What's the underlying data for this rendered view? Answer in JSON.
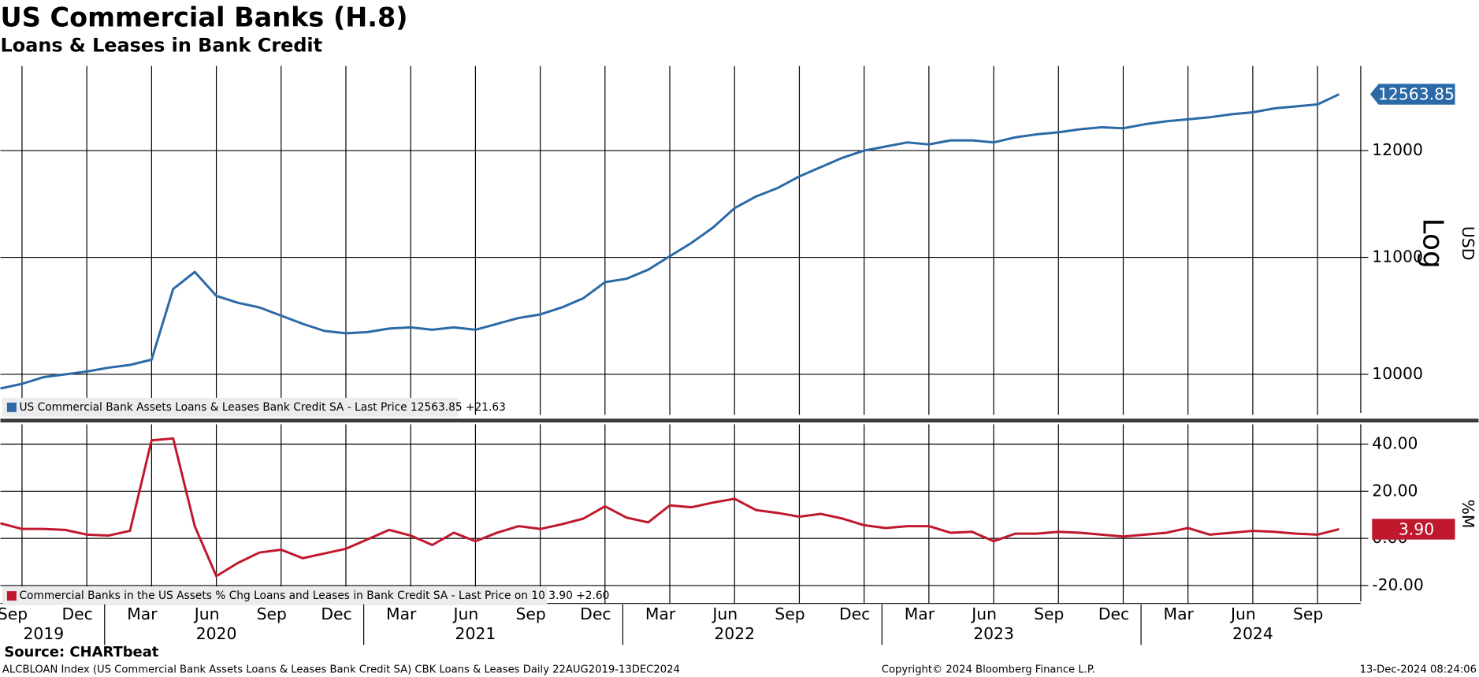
{
  "chart_data": [
    {
      "type": "line",
      "title": "US Commercial Banks (H.8)",
      "subtitle": "Loans & Leases in Bank Credit",
      "x": [
        "2019-08",
        "2019-09",
        "2019-10",
        "2019-11",
        "2019-12",
        "2020-01",
        "2020-02",
        "2020-03",
        "2020-04",
        "2020-05",
        "2020-06",
        "2020-07",
        "2020-08",
        "2020-09",
        "2020-10",
        "2020-11",
        "2020-12",
        "2021-01",
        "2021-02",
        "2021-03",
        "2021-04",
        "2021-05",
        "2021-06",
        "2021-07",
        "2021-08",
        "2021-09",
        "2021-10",
        "2021-11",
        "2021-12",
        "2022-01",
        "2022-02",
        "2022-03",
        "2022-04",
        "2022-05",
        "2022-06",
        "2022-07",
        "2022-08",
        "2022-09",
        "2022-10",
        "2022-11",
        "2022-12",
        "2023-01",
        "2023-02",
        "2023-03",
        "2023-04",
        "2023-05",
        "2023-06",
        "2023-07",
        "2023-08",
        "2023-09",
        "2023-10",
        "2023-11",
        "2023-12",
        "2024-01",
        "2024-02",
        "2024-03",
        "2024-04",
        "2024-05",
        "2024-06",
        "2024-07",
        "2024-08",
        "2024-09",
        "2024-10"
      ],
      "series": [
        {
          "name": "US Commercial Bank Assets Loans & Leases Bank Credit SA - Last Price 12563.85 +21.63",
          "color": "#2b6aa6",
          "values": [
            9885,
            9923,
            9977,
            10000,
            10023,
            10054,
            10077,
            10120,
            10720,
            10870,
            10660,
            10600,
            10560,
            10490,
            10420,
            10360,
            10340,
            10350,
            10380,
            10390,
            10370,
            10390,
            10370,
            10420,
            10470,
            10500,
            10560,
            10640,
            10780,
            10810,
            10890,
            11010,
            11130,
            11270,
            11450,
            11560,
            11640,
            11750,
            11840,
            11930,
            12000,
            12040,
            12080,
            12060,
            12100,
            12100,
            12080,
            12130,
            12160,
            12180,
            12210,
            12230,
            12220,
            12260,
            12290,
            12310,
            12330,
            12360,
            12380,
            12420,
            12440,
            12460,
            12563.85
          ],
          "value_labels": [
            null,
            null,
            null,
            null,
            null,
            null,
            null,
            null,
            null,
            null,
            null,
            null,
            null,
            null,
            null,
            null,
            null,
            null,
            null,
            null,
            null,
            null,
            null,
            null,
            null,
            null,
            null,
            null,
            null,
            null,
            null,
            null,
            null,
            null,
            null,
            null,
            null,
            null,
            null,
            null,
            null,
            null,
            null,
            null,
            null,
            null,
            null,
            null,
            null,
            null,
            null,
            null,
            null,
            null,
            null,
            null,
            null,
            null,
            null,
            null,
            null,
            null,
            "12563.85"
          ]
        }
      ],
      "xlim": [
        "2019-08",
        "2024-11"
      ],
      "ylim": [
        9675,
        12856
      ],
      "yticks": [
        10000,
        11000,
        12000
      ],
      "log_scale": true,
      "scale_label": "Log",
      "y_axis_label": "USD",
      "grid": true
    },
    {
      "type": "line",
      "x": [
        "2019-08",
        "2019-09",
        "2019-10",
        "2019-11",
        "2019-12",
        "2020-01",
        "2020-02",
        "2020-03",
        "2020-04",
        "2020-05",
        "2020-06",
        "2020-07",
        "2020-08",
        "2020-09",
        "2020-10",
        "2020-11",
        "2020-12",
        "2021-01",
        "2021-02",
        "2021-03",
        "2021-04",
        "2021-05",
        "2021-06",
        "2021-07",
        "2021-08",
        "2021-09",
        "2021-10",
        "2021-11",
        "2021-12",
        "2022-01",
        "2022-02",
        "2022-03",
        "2022-04",
        "2022-05",
        "2022-06",
        "2022-07",
        "2022-08",
        "2022-09",
        "2022-10",
        "2022-11",
        "2022-12",
        "2023-01",
        "2023-02",
        "2023-03",
        "2023-04",
        "2023-05",
        "2023-06",
        "2023-07",
        "2023-08",
        "2023-09",
        "2023-10",
        "2023-11",
        "2023-12",
        "2024-01",
        "2024-02",
        "2024-03",
        "2024-04",
        "2024-05",
        "2024-06",
        "2024-07",
        "2024-08",
        "2024-09",
        "2024-10"
      ],
      "series": [
        {
          "name": "Commercial Banks in the US Assets % Chg Loans and Leases in Bank Credit SA - Last Price on 10 3.90 +2.60",
          "color": "#c0182c",
          "values": [
            6.4,
            4,
            4,
            3.6,
            1.6,
            1.2,
            3.2,
            41.6,
            42.4,
            5.2,
            -16,
            -10.4,
            -6,
            -4.8,
            -8.4,
            -6.4,
            -4.4,
            -0.4,
            3.6,
            1.2,
            -2.8,
            2.4,
            -1.2,
            2.4,
            5.2,
            4,
            6,
            8.4,
            13.6,
            8.8,
            6.8,
            14,
            13.2,
            15.2,
            16.8,
            12,
            10.8,
            9.2,
            10.4,
            8.4,
            5.6,
            4.4,
            5.2,
            5.2,
            2.4,
            2.8,
            -1.2,
            2,
            2,
            2.8,
            2.4,
            1.6,
            0.8,
            1.6,
            2.4,
            4.4,
            1.6,
            2.4,
            3.2,
            2.8,
            2,
            1.6,
            3.9
          ],
          "value_labels": [
            null,
            null,
            null,
            null,
            null,
            null,
            null,
            null,
            null,
            null,
            null,
            null,
            null,
            null,
            null,
            null,
            null,
            null,
            null,
            null,
            null,
            null,
            null,
            null,
            null,
            null,
            null,
            null,
            null,
            null,
            null,
            null,
            null,
            null,
            null,
            null,
            null,
            null,
            null,
            null,
            null,
            null,
            null,
            null,
            null,
            null,
            null,
            null,
            null,
            null,
            null,
            null,
            null,
            null,
            null,
            null,
            null,
            null,
            null,
            null,
            null,
            null,
            "3.90"
          ]
        }
      ],
      "xlim": [
        "2019-08",
        "2024-11"
      ],
      "ylim": [
        -27.6,
        48.4
      ],
      "yticks": [
        {
          "value": 40,
          "label": "40.00"
        },
        {
          "value": 20,
          "label": "20.00"
        },
        {
          "value": 0,
          "label": "0.00"
        },
        {
          "value": -20,
          "label": "-20.00"
        }
      ],
      "y_axis_label": "%M",
      "grid": true,
      "xticks": [
        {
          "value": "2019-09",
          "label": "Sep"
        },
        {
          "value": "2019-12",
          "label": "Dec"
        },
        {
          "value": "2020-03",
          "label": "Mar"
        },
        {
          "value": "2020-06",
          "label": "Jun"
        },
        {
          "value": "2020-09",
          "label": "Sep"
        },
        {
          "value": "2020-12",
          "label": "Dec"
        },
        {
          "value": "2021-03",
          "label": "Mar"
        },
        {
          "value": "2021-06",
          "label": "Jun"
        },
        {
          "value": "2021-09",
          "label": "Sep"
        },
        {
          "value": "2021-12",
          "label": "Dec"
        },
        {
          "value": "2022-03",
          "label": "Mar"
        },
        {
          "value": "2022-06",
          "label": "Jun"
        },
        {
          "value": "2022-09",
          "label": "Sep"
        },
        {
          "value": "2022-12",
          "label": "Dec"
        },
        {
          "value": "2023-03",
          "label": "Mar"
        },
        {
          "value": "2023-06",
          "label": "Jun"
        },
        {
          "value": "2023-09",
          "label": "Sep"
        },
        {
          "value": "2023-12",
          "label": "Dec"
        },
        {
          "value": "2024-03",
          "label": "Mar"
        },
        {
          "value": "2024-06",
          "label": "Jun"
        },
        {
          "value": "2024-09",
          "label": "Sep"
        }
      ],
      "x_year_labels": [
        {
          "value": "2019-10",
          "label": "2019"
        },
        {
          "value": "2020-06",
          "label": "2020"
        },
        {
          "value": "2021-06",
          "label": "2021"
        },
        {
          "value": "2022-06",
          "label": "2022"
        },
        {
          "value": "2023-06",
          "label": "2023"
        },
        {
          "value": "2024-06",
          "label": "2024"
        }
      ]
    }
  ],
  "source": "Source: CHARTbeat",
  "footer": {
    "left": "ALCBLOAN Index (US Commercial Bank Assets Loans & Leases Bank Credit SA) CBK Loans & Leases  Daily 22AUG2019-13DEC2024",
    "center": "Copyright© 2024 Bloomberg Finance L.P.",
    "right": "13-Dec-2024 08:24:06"
  }
}
